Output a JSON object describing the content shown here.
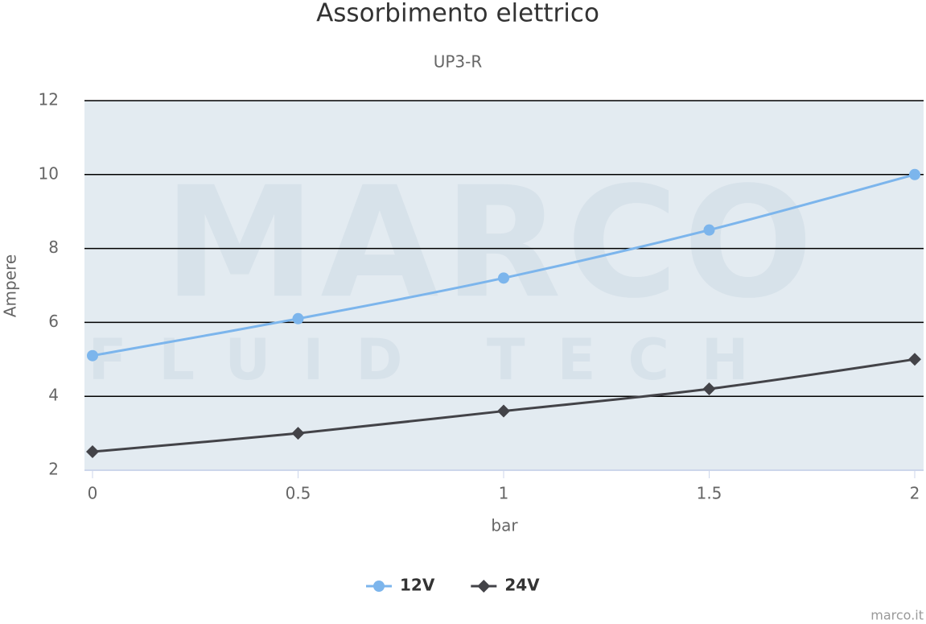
{
  "chart_data": {
    "type": "line",
    "title": "Assorbimento elettrico",
    "subtitle": "UP3-R",
    "x_label": "bar",
    "y_label": "Ampere",
    "x": [
      0,
      0.5,
      1,
      1.5,
      2
    ],
    "series": [
      {
        "name": "12V",
        "color": "#7cb5ec",
        "marker": "circle",
        "values": [
          5.1,
          6.1,
          7.2,
          8.5,
          10
        ]
      },
      {
        "name": "24V",
        "color": "#434348",
        "marker": "diamond",
        "values": [
          2.5,
          3.0,
          3.6,
          4.2,
          5.0
        ]
      }
    ],
    "xlim": [
      0,
      2
    ],
    "xticks": [
      0,
      0.5,
      1,
      1.5,
      2
    ],
    "ylim": [
      2,
      12
    ],
    "yticks": [
      2,
      4,
      6,
      8,
      10,
      12
    ],
    "grid": true,
    "smooth": true,
    "legend": "bottom",
    "watermark": "MARCO",
    "watermark_sub": "FLUID TECH",
    "credits": "marco.it"
  }
}
